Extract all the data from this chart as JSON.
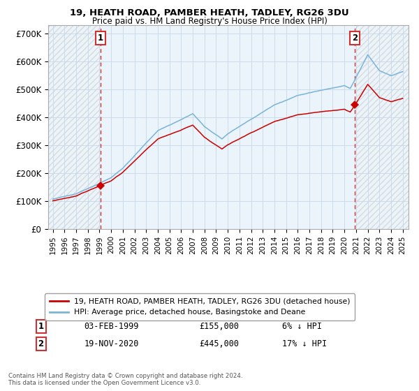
{
  "title": "19, HEATH ROAD, PAMBER HEATH, TADLEY, RG26 3DU",
  "subtitle": "Price paid vs. HM Land Registry's House Price Index (HPI)",
  "ylabel_ticks": [
    "£0",
    "£100K",
    "£200K",
    "£300K",
    "£400K",
    "£500K",
    "£600K",
    "£700K"
  ],
  "ytick_values": [
    0,
    100000,
    200000,
    300000,
    400000,
    500000,
    600000,
    700000
  ],
  "ylim": [
    0,
    730000
  ],
  "legend_line1": "19, HEATH ROAD, PAMBER HEATH, TADLEY, RG26 3DU (detached house)",
  "legend_line2": "HPI: Average price, detached house, Basingstoke and Deane",
  "note1_num": "1",
  "note1_date": "03-FEB-1999",
  "note1_price": "£155,000",
  "note1_pct": "6% ↓ HPI",
  "note2_num": "2",
  "note2_date": "19-NOV-2020",
  "note2_price": "£445,000",
  "note2_pct": "17% ↓ HPI",
  "footer": "Contains HM Land Registry data © Crown copyright and database right 2024.\nThis data is licensed under the Open Government Licence v3.0.",
  "sale1_year": 1999.08,
  "sale1_price": 155000,
  "sale2_year": 2020.88,
  "sale2_price": 445000,
  "hpi_color": "#7ab4d8",
  "price_color": "#cc0000",
  "vline_color": "#cc3333",
  "grid_color": "#c8d8e8",
  "shade_between_color": "#ddeeff",
  "shade_outside_color": "#e8eef4",
  "background_color": "#ffffff"
}
